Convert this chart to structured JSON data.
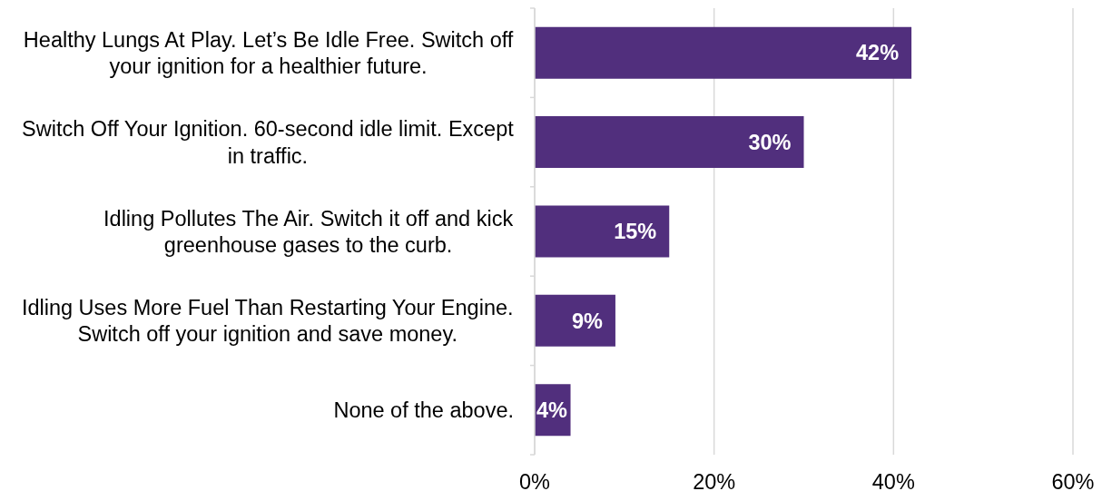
{
  "chart_data": {
    "type": "bar",
    "orientation": "horizontal",
    "categories": [
      "Healthy Lungs At Play. Let’s Be Idle Free. Switch off your ignition for a healthier future.",
      "Switch Off Your Ignition. 60-second idle limit. Except in traffic.",
      "Idling Pollutes The Air. Switch it off and kick greenhouse gases to the curb.",
      "Idling Uses More Fuel Than Restarting Your Engine. Switch off your ignition and save money.",
      "None of the above."
    ],
    "values": [
      42,
      30,
      15,
      9,
      4
    ],
    "value_labels": [
      "42%",
      "30%",
      "15%",
      "9%",
      "4%"
    ],
    "color": "#512f7d",
    "xlim": [
      0,
      60
    ],
    "xticks": [
      {
        "value": 0,
        "label": "0%"
      },
      {
        "value": 20,
        "label": "20%"
      },
      {
        "value": 40,
        "label": "40%"
      },
      {
        "value": 60,
        "label": "60%"
      }
    ],
    "grid": "x"
  }
}
